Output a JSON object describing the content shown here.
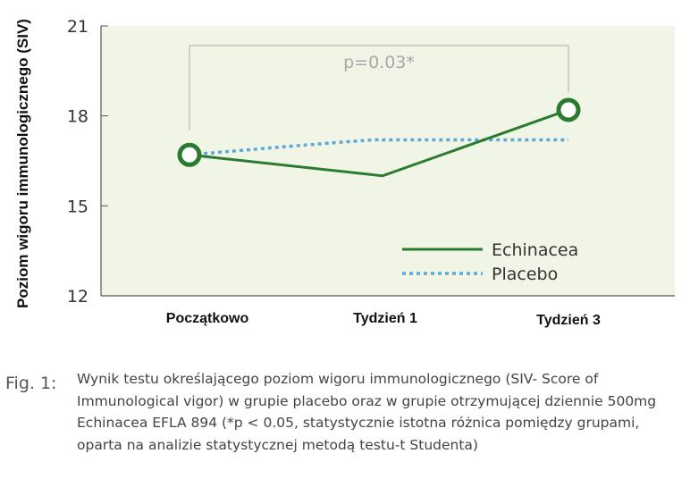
{
  "chart_data": {
    "type": "line",
    "title": "",
    "xlabel": "",
    "ylabel": "Poziom wigoru immunologicznego (SIV)",
    "ylim": [
      12,
      21
    ],
    "yticks": [
      12,
      15,
      18,
      21
    ],
    "categories": [
      "Początkowo",
      "Tydzień 1",
      "Tydzień 3"
    ],
    "series": [
      {
        "name": "Echinacea",
        "values": [
          16.7,
          16.0,
          18.2
        ],
        "color": "#2a7a2f",
        "style": "solid",
        "markers": [
          true,
          false,
          true
        ]
      },
      {
        "name": "Placebo",
        "values": [
          16.7,
          17.2,
          17.2
        ],
        "color": "#5fa9d8",
        "style": "dotted",
        "markers": [
          false,
          false,
          false
        ]
      }
    ],
    "annotation": {
      "text": "p=0.03*",
      "between": [
        "Początkowo",
        "Tydzień 3"
      ]
    },
    "legend_position": "bottom-right",
    "background_color": "#f1f5e5",
    "grid": false
  },
  "caption": {
    "label": "Fig. 1:",
    "text": "Wynik testu określającego poziom wigoru immunologicznego (SIV- Score of Immunological vigor) w grupie placebo oraz w grupie otrzymującej dziennie 500mg Echinacea EFLA 894 (*p < 0.05, statystycznie istotna różnica pomiędzy grupami, oparta na analizie statystycznej metodą testu-t Studenta)"
  }
}
